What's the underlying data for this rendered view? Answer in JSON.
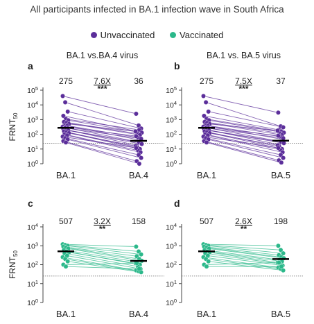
{
  "figure": {
    "title": "All participants infected in BA.1 infection wave in South Africa",
    "legend": [
      {
        "label": "Unvaccinated",
        "color": "#5b2e9a"
      },
      {
        "label": "Vaccinated",
        "color": "#2bb88a"
      }
    ]
  },
  "chart_data": [
    {
      "panel": "a",
      "type": "line",
      "title": "BA.1 vs.BA.4 virus",
      "ylabel": "FRNT50",
      "yscale": "log",
      "ylim": [
        1,
        100000
      ],
      "yticks": [
        "10^0",
        "10^1",
        "10^2",
        "10^3",
        "10^4",
        "10^5"
      ],
      "categories": [
        "BA.1",
        "BA.4"
      ],
      "group": "Unvaccinated",
      "color": "#5b2e9a",
      "geomean": [
        275,
        36
      ],
      "fold_change": "7.6X",
      "significance": "***",
      "threshold": 25,
      "pairs": [
        [
          40000,
          2500
        ],
        [
          15000,
          400
        ],
        [
          3500,
          250
        ],
        [
          1800,
          160
        ],
        [
          1100,
          200
        ],
        [
          900,
          130
        ],
        [
          700,
          110
        ],
        [
          600,
          90
        ],
        [
          500,
          160
        ],
        [
          420,
          60
        ],
        [
          380,
          40
        ],
        [
          330,
          75
        ],
        [
          290,
          30
        ],
        [
          260,
          50
        ],
        [
          230,
          18
        ],
        [
          200,
          28
        ],
        [
          180,
          22
        ],
        [
          160,
          13
        ],
        [
          140,
          10
        ],
        [
          120,
          16
        ],
        [
          100,
          8
        ],
        [
          85,
          6
        ],
        [
          70,
          12
        ],
        [
          55,
          4
        ],
        [
          45,
          2.5
        ],
        [
          35,
          1.5
        ],
        [
          28,
          1
        ]
      ]
    },
    {
      "panel": "b",
      "type": "line",
      "title": "BA.1 vs. BA.5 virus",
      "ylabel": "",
      "yscale": "log",
      "ylim": [
        1,
        100000
      ],
      "yticks": [
        "10^0",
        "10^1",
        "10^2",
        "10^3",
        "10^4",
        "10^5"
      ],
      "categories": [
        "BA.1",
        "BA.5"
      ],
      "group": "Unvaccinated",
      "color": "#5b2e9a",
      "geomean": [
        275,
        37
      ],
      "fold_change": "7.5X",
      "significance": "***",
      "threshold": 25,
      "pairs": [
        [
          40000,
          3000
        ],
        [
          15000,
          350
        ],
        [
          3500,
          300
        ],
        [
          1800,
          200
        ],
        [
          1100,
          160
        ],
        [
          900,
          130
        ],
        [
          700,
          120
        ],
        [
          600,
          90
        ],
        [
          500,
          180
        ],
        [
          420,
          70
        ],
        [
          380,
          45
        ],
        [
          330,
          80
        ],
        [
          290,
          32
        ],
        [
          260,
          55
        ],
        [
          230,
          20
        ],
        [
          200,
          30
        ],
        [
          180,
          25
        ],
        [
          160,
          14
        ],
        [
          140,
          10
        ],
        [
          120,
          18
        ],
        [
          100,
          9
        ],
        [
          85,
          6
        ],
        [
          70,
          12
        ],
        [
          55,
          4
        ],
        [
          45,
          2.5
        ],
        [
          35,
          1.7
        ],
        [
          28,
          1.2
        ]
      ]
    },
    {
      "panel": "c",
      "type": "line",
      "title": "",
      "ylabel": "FRNT50",
      "yscale": "log",
      "ylim": [
        1,
        10000
      ],
      "yticks": [
        "10^0",
        "10^1",
        "10^2",
        "10^3",
        "10^4"
      ],
      "categories": [
        "BA.1",
        "BA.4"
      ],
      "group": "Vaccinated",
      "color": "#2bb88a",
      "geomean": [
        507,
        158
      ],
      "fold_change": "3.2X",
      "significance": "**",
      "threshold": 25,
      "pairs": [
        [
          1200,
          900
        ],
        [
          1100,
          500
        ],
        [
          1000,
          350
        ],
        [
          900,
          280
        ],
        [
          800,
          200
        ],
        [
          700,
          160
        ],
        [
          600,
          140
        ],
        [
          500,
          100
        ],
        [
          450,
          120
        ],
        [
          400,
          80
        ],
        [
          300,
          60
        ],
        [
          250,
          50
        ],
        [
          200,
          45
        ],
        [
          150,
          40
        ],
        [
          100,
          120
        ],
        [
          80,
          60
        ]
      ]
    },
    {
      "panel": "d",
      "type": "line",
      "title": "",
      "ylabel": "",
      "yscale": "log",
      "ylim": [
        1,
        10000
      ],
      "yticks": [
        "10^0",
        "10^1",
        "10^2",
        "10^3",
        "10^4"
      ],
      "categories": [
        "BA.1",
        "BA.5"
      ],
      "group": "Vaccinated",
      "color": "#2bb88a",
      "geomean": [
        507,
        198
      ],
      "fold_change": "2.6X",
      "significance": "**",
      "threshold": 25,
      "pairs": [
        [
          1200,
          1000
        ],
        [
          1100,
          600
        ],
        [
          1000,
          400
        ],
        [
          900,
          320
        ],
        [
          800,
          250
        ],
        [
          700,
          220
        ],
        [
          600,
          180
        ],
        [
          500,
          150
        ],
        [
          450,
          130
        ],
        [
          400,
          110
        ],
        [
          300,
          90
        ],
        [
          250,
          70
        ],
        [
          200,
          60
        ],
        [
          150,
          50
        ],
        [
          100,
          130
        ],
        [
          80,
          80
        ]
      ]
    }
  ]
}
